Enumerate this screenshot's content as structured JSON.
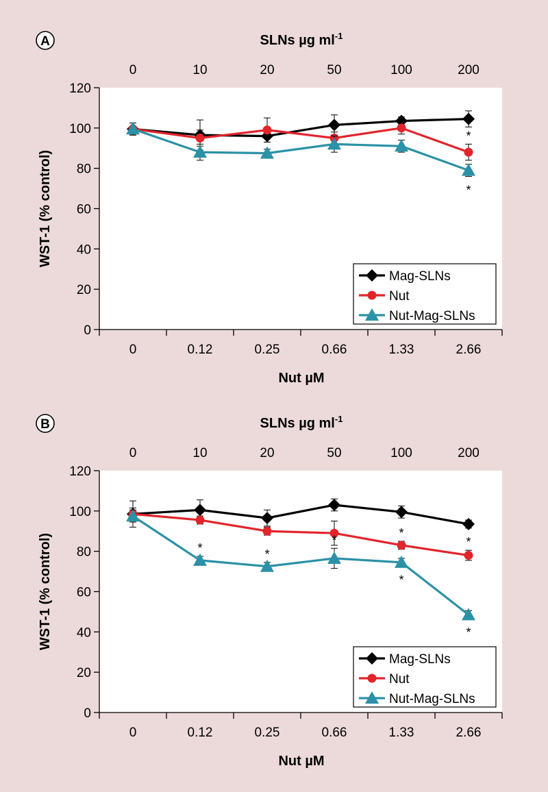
{
  "chart_data": [
    {
      "type": "line",
      "panel_label": "A",
      "top_axis_title_main": "SLNs µg ml",
      "top_axis_title_sup": "-1",
      "top_axis_labels": [
        "0",
        "10",
        "20",
        "50",
        "100",
        "200"
      ],
      "categories": [
        "0",
        "0.12",
        "0.25",
        "0.66",
        "1.33",
        "2.66"
      ],
      "xlabel": "Nut µM",
      "ylabel": "WST-1 (% control)",
      "ylim": [
        0,
        120
      ],
      "yticks": [
        "0",
        "20",
        "40",
        "60",
        "80",
        "100",
        "120"
      ],
      "legend_position": "bottom-right",
      "series": [
        {
          "name": "Mag-SLNs",
          "color": "#000000",
          "marker": "diamond",
          "values": [
            99.5,
            96.5,
            96,
            101.5,
            103.5,
            104.5
          ],
          "errors": [
            3,
            7.5,
            3,
            5,
            2,
            4
          ],
          "significance": [
            "",
            "",
            "",
            "",
            "",
            ""
          ]
        },
        {
          "name": "Nut",
          "color": "#e2242b",
          "marker": "circle",
          "values": [
            99.5,
            95,
            99,
            95,
            100,
            88
          ],
          "errors": [
            3,
            4,
            6,
            3,
            3,
            4
          ],
          "significance": [
            "",
            "",
            "",
            "",
            "",
            "*"
          ]
        },
        {
          "name": "Nut-Mag-SLNs",
          "color": "#2b91a6",
          "marker": "triangle",
          "values": [
            99.5,
            88,
            87.5,
            92,
            91,
            79
          ],
          "errors": [
            3,
            4,
            2,
            4,
            3,
            3
          ],
          "significance": [
            "",
            "",
            "",
            "",
            "",
            "*"
          ]
        }
      ]
    },
    {
      "type": "line",
      "panel_label": "B",
      "top_axis_title_main": "SLNs µg ml",
      "top_axis_title_sup": "-1",
      "top_axis_labels": [
        "0",
        "10",
        "20",
        "50",
        "100",
        "200"
      ],
      "categories": [
        "0",
        "0.12",
        "0.25",
        "0.66",
        "1.33",
        "2.66"
      ],
      "xlabel": "Nut µM",
      "ylabel": "WST-1 (% control)",
      "ylim": [
        0,
        120
      ],
      "yticks": [
        "0",
        "20",
        "40",
        "60",
        "80",
        "100",
        "120"
      ],
      "legend_position": "bottom-right",
      "series": [
        {
          "name": "Mag-SLNs",
          "color": "#000000",
          "marker": "diamond",
          "values": [
            98.5,
            100.5,
            96.5,
            103,
            99.5,
            93.5
          ],
          "errors": [
            6.5,
            5,
            4,
            3,
            3,
            2
          ],
          "significance": [
            "",
            "",
            "",
            "",
            "",
            ""
          ]
        },
        {
          "name": "Nut",
          "color": "#e2242b",
          "marker": "circle",
          "values": [
            98.5,
            95.5,
            90,
            89,
            83,
            78
          ],
          "errors": [
            3,
            2,
            2,
            6,
            2,
            2.5
          ],
          "significance": [
            "",
            "",
            "",
            "",
            "*",
            "*"
          ]
        },
        {
          "name": "Nut-Mag-SLNs",
          "color": "#2b91a6",
          "marker": "triangle",
          "values": [
            97.5,
            75.5,
            72.5,
            76.5,
            74.5,
            48.5
          ],
          "errors": [
            3,
            2,
            2,
            5,
            2,
            2
          ],
          "significance": [
            "",
            "*",
            "*",
            "*",
            "*",
            "*"
          ]
        }
      ]
    }
  ]
}
